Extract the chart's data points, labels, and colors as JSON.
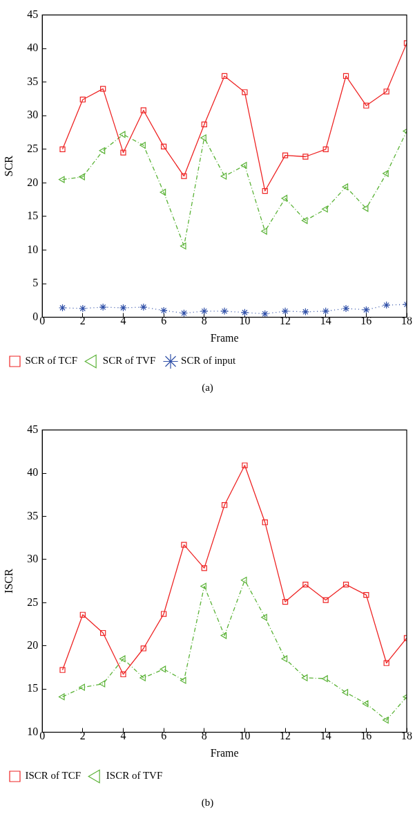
{
  "chart_data": [
    {
      "type": "line",
      "xlabel": "Frame",
      "ylabel": "SCR",
      "x": [
        1,
        2,
        3,
        4,
        5,
        6,
        7,
        8,
        9,
        10,
        11,
        12,
        13,
        14,
        15,
        16,
        17,
        18
      ],
      "xlim": [
        0,
        18
      ],
      "xticks": [
        0,
        2,
        4,
        6,
        8,
        10,
        12,
        14,
        16,
        18
      ],
      "ylim": [
        0,
        45
      ],
      "yticks": [
        0,
        5,
        10,
        15,
        20,
        25,
        30,
        35,
        40,
        45
      ],
      "grid": false,
      "legend": "bottom",
      "annotations": [
        "(a)"
      ],
      "series": [
        {
          "name": "SCR of TCF",
          "color": "#ee2424",
          "marker": "square",
          "line_style": "solid",
          "values": [
            25.0,
            32.4,
            34.0,
            24.5,
            30.8,
            25.4,
            21.0,
            28.7,
            35.9,
            33.5,
            18.8,
            24.1,
            23.9,
            25.0,
            35.9,
            31.5,
            33.6,
            40.8
          ]
        },
        {
          "name": "SCR of TVF",
          "color": "#5ab236",
          "marker": "triangle",
          "line_style": "dashed",
          "values": [
            20.5,
            20.9,
            24.8,
            27.2,
            25.6,
            18.6,
            10.6,
            26.7,
            21.0,
            22.6,
            12.8,
            17.7,
            14.4,
            16.1,
            19.4,
            16.2,
            21.4,
            27.7
          ]
        },
        {
          "name": "SCR of input",
          "color": "#3050a8",
          "marker": "cross",
          "line_style": "dotted",
          "values": [
            1.4,
            1.3,
            1.5,
            1.4,
            1.5,
            1.0,
            0.6,
            0.9,
            0.9,
            0.7,
            0.5,
            0.9,
            0.8,
            0.9,
            1.3,
            1.1,
            1.8,
            1.9
          ]
        }
      ]
    },
    {
      "type": "line",
      "xlabel": "Frame",
      "ylabel": "ISCR",
      "x": [
        1,
        2,
        3,
        4,
        5,
        6,
        7,
        8,
        9,
        10,
        11,
        12,
        13,
        14,
        15,
        16,
        17,
        18
      ],
      "xlim": [
        0,
        18
      ],
      "xticks": [
        0,
        2,
        4,
        6,
        8,
        10,
        12,
        14,
        16,
        18
      ],
      "ylim": [
        10,
        45
      ],
      "yticks": [
        10,
        15,
        20,
        25,
        30,
        35,
        40,
        45
      ],
      "grid": false,
      "legend": "bottom",
      "annotations": [
        "(b)"
      ],
      "series": [
        {
          "name": "ISCR of TCF",
          "color": "#ee2424",
          "marker": "square",
          "line_style": "solid",
          "values": [
            17.2,
            23.6,
            21.5,
            16.7,
            19.7,
            23.7,
            31.7,
            29.0,
            36.3,
            40.9,
            34.3,
            25.1,
            27.1,
            25.3,
            27.1,
            25.9,
            18.0,
            20.9
          ]
        },
        {
          "name": "ISCR of TVF",
          "color": "#5ab236",
          "marker": "triangle",
          "line_style": "dashed",
          "values": [
            14.1,
            15.2,
            15.6,
            18.5,
            16.3,
            17.3,
            16.0,
            26.9,
            21.2,
            27.6,
            23.3,
            18.5,
            16.3,
            16.2,
            14.6,
            13.3,
            11.4,
            14.1
          ]
        }
      ]
    }
  ]
}
